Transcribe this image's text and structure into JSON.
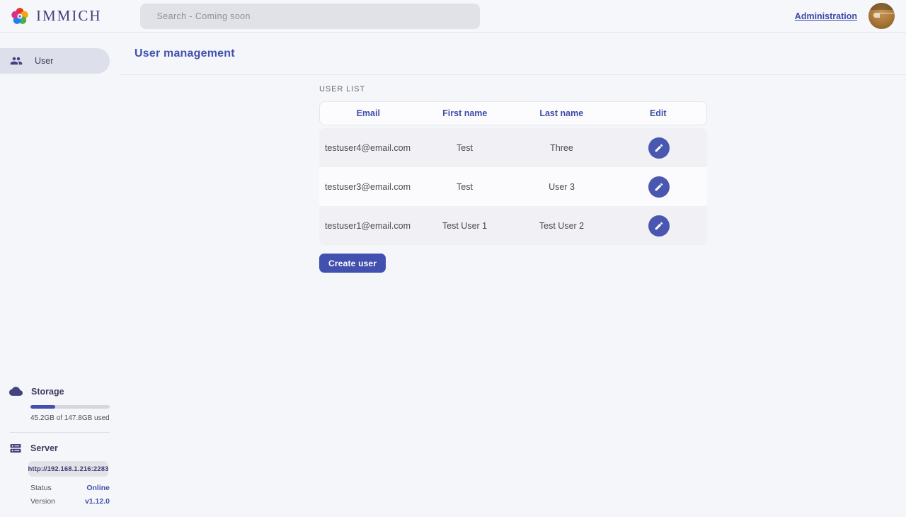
{
  "brand": {
    "name": "IMMICH",
    "accent_color": "#4250af",
    "logo_petal_colors": [
      "#e0352c",
      "#f2a50c",
      "#4cae50",
      "#1e7ff2",
      "#d63384"
    ]
  },
  "topbar": {
    "search_placeholder": "Search - Coming soon",
    "administration_label": "Administration"
  },
  "sidebar": {
    "nav": [
      {
        "label": "User",
        "icon": "people-icon",
        "active": true
      }
    ],
    "storage": {
      "title": "Storage",
      "icon": "cloud-icon",
      "usage_label": "45.2GB of 147.8GB used",
      "percent_used": 31
    },
    "server": {
      "title": "Server",
      "icon": "server-icon",
      "url": "http://192.168.1.216:2283",
      "rows": [
        {
          "label": "Status",
          "value": "Online"
        },
        {
          "label": "Version",
          "value": "v1.12.0"
        }
      ],
      "status_color": "#4250af"
    }
  },
  "main": {
    "page_title": "User management",
    "section_title": "USER LIST",
    "table": {
      "headers": [
        "Email",
        "First name",
        "Last name",
        "Edit"
      ],
      "rows": [
        {
          "email": "testuser4@email.com",
          "first_name": "Test",
          "last_name": "Three"
        },
        {
          "email": "testuser3@email.com",
          "first_name": "Test",
          "last_name": "User 3"
        },
        {
          "email": "testuser1@email.com",
          "first_name": "Test User 1",
          "last_name": "Test User 2"
        }
      ]
    },
    "create_button_label": "Create user"
  }
}
